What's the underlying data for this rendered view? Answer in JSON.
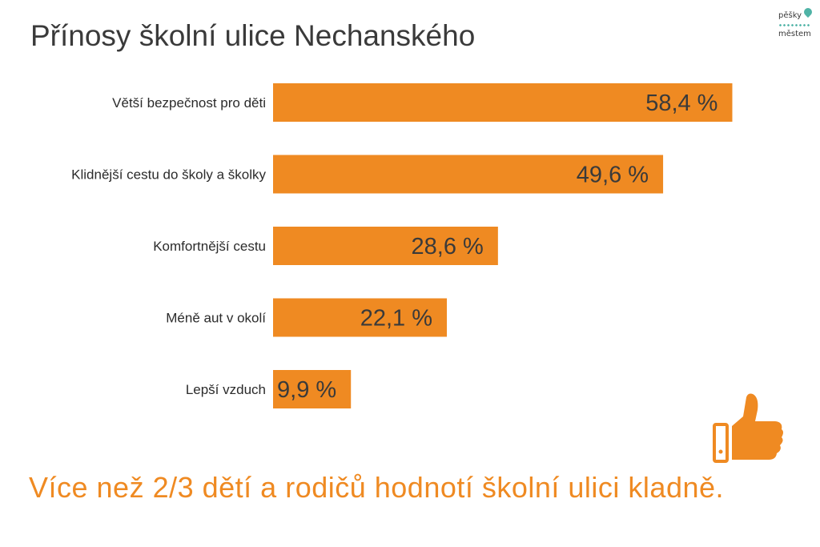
{
  "title": "Přínosy školní ulice Nechanského",
  "logo": {
    "line1": "pěšky",
    "line2": "městem"
  },
  "footer": "Více než 2/3 dětí a rodičů hodnotí školní ulici kladně.",
  "colors": {
    "bar": "#ef8a22",
    "text": "#3a3a3a",
    "accent": "#4fb3a6"
  },
  "icons": {
    "thumb": "thumbs-up-icon",
    "logo_pin": "location-pin-icon"
  },
  "chart_data": {
    "type": "bar",
    "orientation": "horizontal",
    "categories": [
      "Větší bezpečnost pro děti",
      "Klidnější cestu do školy a školky",
      "Komfortnější cestu",
      "Méně aut v okolí",
      "Lepší vzduch"
    ],
    "values": [
      58.4,
      49.6,
      28.6,
      22.1,
      9.9
    ],
    "value_labels": [
      "58,4 %",
      "49,6 %",
      "28,6 %",
      "22,1 %",
      "9,9 %"
    ],
    "unit": "%",
    "xlim": [
      0,
      100
    ],
    "grid": false,
    "legend": "none"
  }
}
